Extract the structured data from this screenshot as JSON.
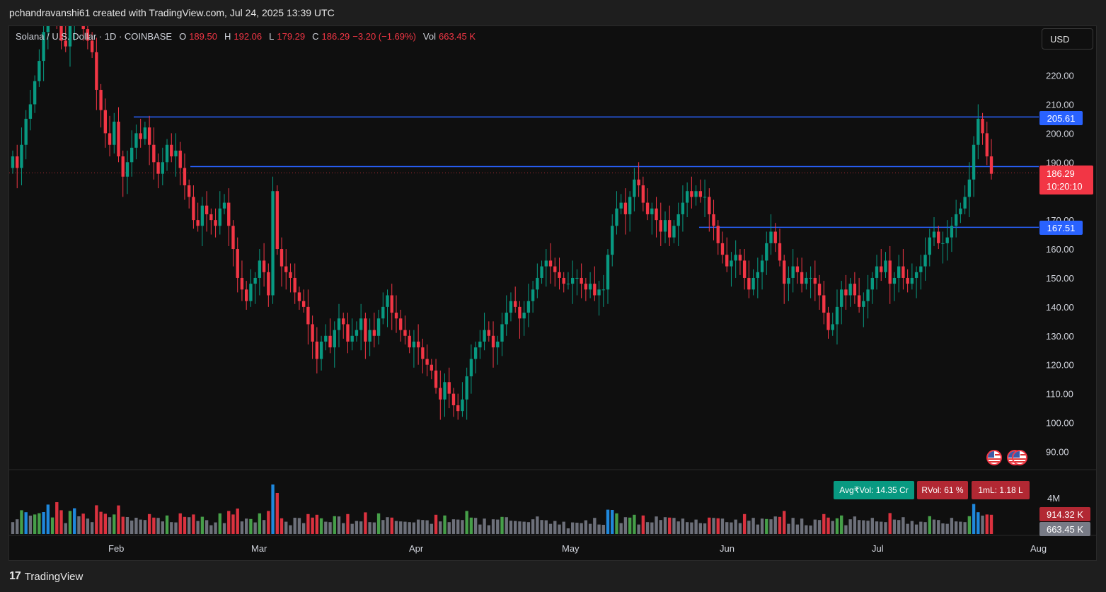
{
  "header": {
    "text": "pchandravanshi61 created with TradingView.com, Jul 24, 2025 13:39 UTC"
  },
  "legend": {
    "symbol": "Solana / U.S. Dollar · 1D · COINBASE",
    "o_label": "O",
    "o": "189.50",
    "h_label": "H",
    "h": "192.06",
    "l_label": "L",
    "l": "179.29",
    "c_label": "C",
    "c": "186.29",
    "change": "−3.20 (−1.69%)",
    "vol_label": "Vol",
    "vol": "663.45 K"
  },
  "currency_button": "USD",
  "price_tags": {
    "resistance_upper": "205.61",
    "support_lower": "167.51",
    "current_price": "186.29",
    "countdown": "10:20:10",
    "vol_avg": "914.32 K",
    "vol_current": "663.45 K"
  },
  "volume_badges": {
    "avg": "Avg₹Vol: 14.35 Cr",
    "rvol": "RVol: 61 %",
    "iml": "1mL: 1.18 L"
  },
  "footer": {
    "brand": "TradingView"
  },
  "colors": {
    "up": "#089981",
    "down": "#f23645",
    "level_line": "#2962ff",
    "vol_blue": "#2196f3",
    "vol_red": "#f23645",
    "vol_green": "#4caf50",
    "vol_gray": "#787b86"
  },
  "chart_data": {
    "type": "candlestick",
    "title": "Solana / U.S. Dollar · 1D · COINBASE",
    "y_ticks": [
      "90.00",
      "100.00",
      "110.00",
      "120.00",
      "130.00",
      "140.00",
      "150.00",
      "160.00",
      "170.00",
      "180.00",
      "190.00",
      "200.00",
      "210.00",
      "220.00"
    ],
    "x_ticks": [
      "Feb",
      "Mar",
      "Apr",
      "May",
      "Jun",
      "Jul",
      "Aug"
    ],
    "ylim": [
      84,
      237
    ],
    "horizontal_levels": [
      205.61,
      188.5,
      167.51
    ],
    "current_price": 186.29,
    "closes": [
      192,
      188,
      196,
      205,
      210,
      218,
      225,
      235,
      248,
      255,
      240,
      232,
      230,
      238,
      250,
      245,
      236,
      232,
      228,
      215,
      208,
      200,
      196,
      204,
      192,
      185,
      190,
      195,
      200,
      198,
      202,
      196,
      190,
      186,
      190,
      196,
      192,
      194,
      188,
      182,
      178,
      170,
      168,
      175,
      172,
      170,
      168,
      174,
      176,
      168,
      160,
      150,
      146,
      142,
      148,
      150,
      156,
      152,
      144,
      180,
      160,
      154,
      152,
      150,
      145,
      142,
      140,
      134,
      128,
      122,
      128,
      130,
      126,
      132,
      136,
      134,
      128,
      130,
      132,
      136,
      128,
      132,
      130,
      136,
      140,
      144,
      138,
      136,
      132,
      130,
      126,
      128,
      126,
      122,
      120,
      118,
      112,
      108,
      114,
      110,
      106,
      104,
      108,
      116,
      122,
      126,
      128,
      132,
      130,
      126,
      128,
      134,
      138,
      142,
      140,
      136,
      138,
      142,
      146,
      150,
      154,
      156,
      154,
      152,
      150,
      148,
      148,
      150,
      150,
      148,
      146,
      148,
      144,
      146,
      146,
      158,
      168,
      174,
      176,
      172,
      178,
      184,
      182,
      176,
      172,
      174,
      170,
      166,
      170,
      164,
      168,
      172,
      176,
      180,
      178,
      180,
      178,
      178,
      172,
      168,
      162,
      158,
      154,
      156,
      158,
      156,
      150,
      146,
      150,
      152,
      156,
      162,
      166,
      162,
      156,
      148,
      150,
      154,
      152,
      148,
      150,
      150,
      148,
      144,
      138,
      132,
      134,
      140,
      146,
      144,
      148,
      144,
      140,
      142,
      146,
      150,
      154,
      152,
      156,
      148,
      150,
      154,
      150,
      148,
      150,
      152,
      154,
      158,
      164,
      166,
      162,
      162,
      164,
      168,
      172,
      174,
      178,
      184,
      196,
      205,
      200,
      192,
      186
    ]
  }
}
